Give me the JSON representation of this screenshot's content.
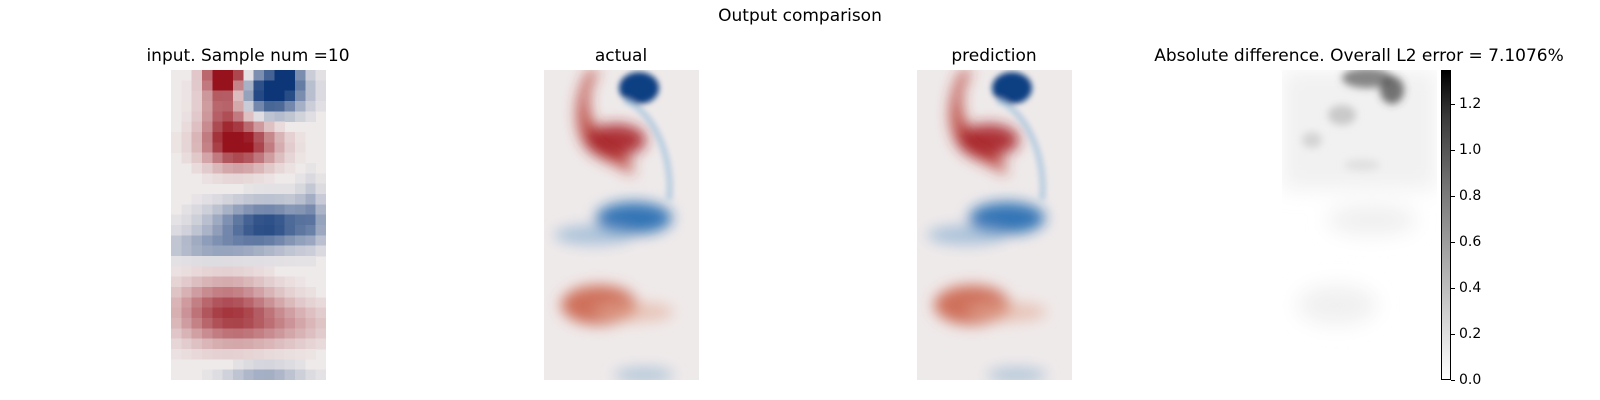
{
  "figure": {
    "suptitle": "Output comparison"
  },
  "chart_data": [
    {
      "type": "heatmap",
      "title": "input. Sample num =10",
      "colormap": "diverging red-white-blue",
      "grid": false,
      "axes_visible": false,
      "sample_num": 10,
      "resolution": "coarse"
    },
    {
      "type": "heatmap",
      "title": "actual",
      "colormap": "diverging red-white-blue",
      "grid": false,
      "axes_visible": false
    },
    {
      "type": "heatmap",
      "title": "prediction",
      "colormap": "diverging red-white-blue",
      "grid": false,
      "axes_visible": false
    },
    {
      "type": "heatmap",
      "title": "Absolute difference. Overall L2 error = 7.1076%",
      "colormap": "gray_r",
      "grid": false,
      "axes_visible": false,
      "l2_error_percent": 7.1076,
      "colorbar": {
        "range": [
          0.0,
          1.35
        ],
        "ticks": [
          0.0,
          0.2,
          0.4,
          0.6,
          0.8,
          1.0,
          1.2
        ],
        "tick_labels": [
          "0.0",
          "0.2",
          "0.4",
          "0.6",
          "0.8",
          "1.0",
          "1.2"
        ]
      }
    }
  ]
}
